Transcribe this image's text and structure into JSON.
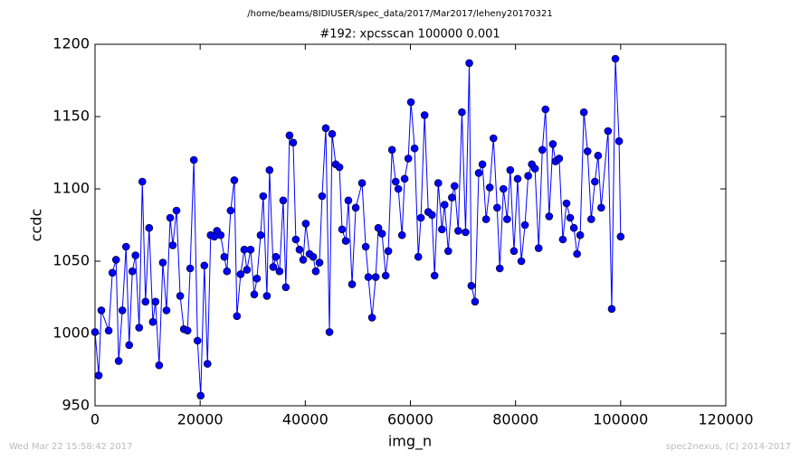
{
  "chart_data": {
    "type": "line",
    "header": "/home/beams/8IDIUSER/spec_data/2017/Mar2017/leheny20170321",
    "title": "#192: xpcsscan 100000 0.001",
    "xlabel": "img_n",
    "ylabel": "ccdc",
    "footer_left": "Wed Mar 22 15:58:42 2017",
    "footer_right": "spec2nexus, (C) 2014-2017",
    "xlim": [
      0,
      120000
    ],
    "xticks": [
      0,
      20000,
      40000,
      60000,
      80000,
      100000,
      120000
    ],
    "ylim": [
      950,
      1200
    ],
    "yticks": [
      950,
      1000,
      1050,
      1100,
      1150,
      1200
    ],
    "grid": false,
    "series": [
      {
        "color": "#0000ff",
        "x": [
          0,
          700,
          1200,
          2600,
          3300,
          4000,
          4500,
          5200,
          5900,
          6500,
          7100,
          7700,
          8400,
          9000,
          9600,
          10300,
          11000,
          11500,
          12200,
          12900,
          13600,
          14300,
          14800,
          15500,
          16200,
          16900,
          17600,
          18100,
          18800,
          19500,
          20100,
          20800,
          21400,
          22000,
          22700,
          23200,
          23900,
          24600,
          25100,
          25800,
          26500,
          27000,
          27700,
          28400,
          28900,
          29600,
          30300,
          30800,
          31500,
          32000,
          32700,
          33200,
          33900,
          34400,
          35100,
          35800,
          36300,
          37000,
          37700,
          38200,
          38900,
          39600,
          40100,
          40800,
          41500,
          42000,
          42700,
          43200,
          43900,
          44600,
          45100,
          45800,
          46500,
          47000,
          47700,
          48200,
          48900,
          49600,
          50800,
          51500,
          52000,
          52700,
          53400,
          53900,
          54600,
          55300,
          55800,
          56500,
          57200,
          57700,
          58400,
          58900,
          59600,
          60100,
          60800,
          61500,
          62000,
          62700,
          63400,
          64100,
          64600,
          65300,
          66000,
          66500,
          67200,
          67900,
          68400,
          69100,
          69800,
          70500,
          71200,
          71600,
          72300,
          73000,
          73700,
          74400,
          75100,
          75800,
          76500,
          77000,
          77700,
          78400,
          79000,
          79700,
          80400,
          81100,
          81800,
          82400,
          83100,
          83700,
          84400,
          85100,
          85700,
          86400,
          87100,
          87600,
          88300,
          89000,
          89700,
          90400,
          91100,
          91700,
          92300,
          93000,
          93700,
          94400,
          95100,
          95700,
          96300,
          97600,
          98300,
          99000,
          99700,
          100000
        ],
        "values": [
          1001,
          971,
          1016,
          1002,
          1042,
          1051,
          981,
          1016,
          1060,
          992,
          1043,
          1054,
          1004,
          1105,
          1022,
          1073,
          1008,
          1022,
          978,
          1049,
          1016,
          1080,
          1061,
          1085,
          1026,
          1003,
          1002,
          1045,
          1120,
          995,
          957,
          1047,
          979,
          1068,
          1067,
          1071,
          1068,
          1053,
          1043,
          1085,
          1106,
          1012,
          1041,
          1058,
          1044,
          1058,
          1027,
          1038,
          1068,
          1095,
          1026,
          1113,
          1046,
          1053,
          1043,
          1092,
          1032,
          1137,
          1132,
          1065,
          1058,
          1051,
          1076,
          1055,
          1053,
          1043,
          1049,
          1095,
          1142,
          1001,
          1138,
          1117,
          1115,
          1072,
          1064,
          1092,
          1034,
          1087,
          1104,
          1060,
          1039,
          1011,
          1039,
          1073,
          1069,
          1040,
          1057,
          1127,
          1105,
          1100,
          1068,
          1107,
          1121,
          1160,
          1128,
          1053,
          1080,
          1151,
          1084,
          1082,
          1040,
          1104,
          1072,
          1089,
          1057,
          1094,
          1102,
          1071,
          1153,
          1070,
          1187,
          1033,
          1022,
          1111,
          1117,
          1079,
          1101,
          1135,
          1087,
          1045,
          1100,
          1079,
          1113,
          1057,
          1107,
          1050,
          1075,
          1109,
          1117,
          1114,
          1059,
          1127,
          1155,
          1081,
          1131,
          1119,
          1121,
          1065,
          1090,
          1080,
          1073,
          1055,
          1068,
          1153,
          1126,
          1079,
          1105,
          1123,
          1087,
          1140,
          1017,
          1190,
          1133,
          1067
        ]
      }
    ]
  }
}
